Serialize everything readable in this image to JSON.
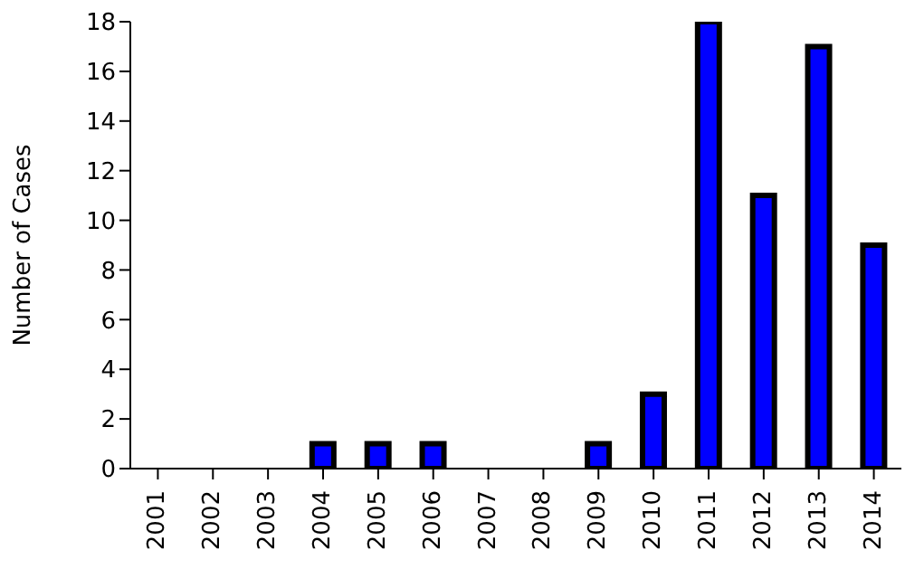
{
  "chart_data": {
    "type": "bar",
    "ylabel": "Number of Cases",
    "categories": [
      "2001",
      "2002",
      "2003",
      "2004",
      "2005",
      "2006",
      "2007",
      "2008",
      "2009",
      "2010",
      "2011",
      "2012",
      "2013",
      "2014"
    ],
    "values": [
      0,
      0,
      0,
      1,
      1,
      1,
      0,
      0,
      1,
      3,
      18,
      11,
      17,
      9
    ],
    "color": "#0000ff",
    "ylim": [
      0,
      18
    ],
    "yticks": [
      0,
      2,
      4,
      6,
      8,
      10,
      12,
      14,
      16,
      18
    ],
    "grid": false,
    "legend": false
  }
}
